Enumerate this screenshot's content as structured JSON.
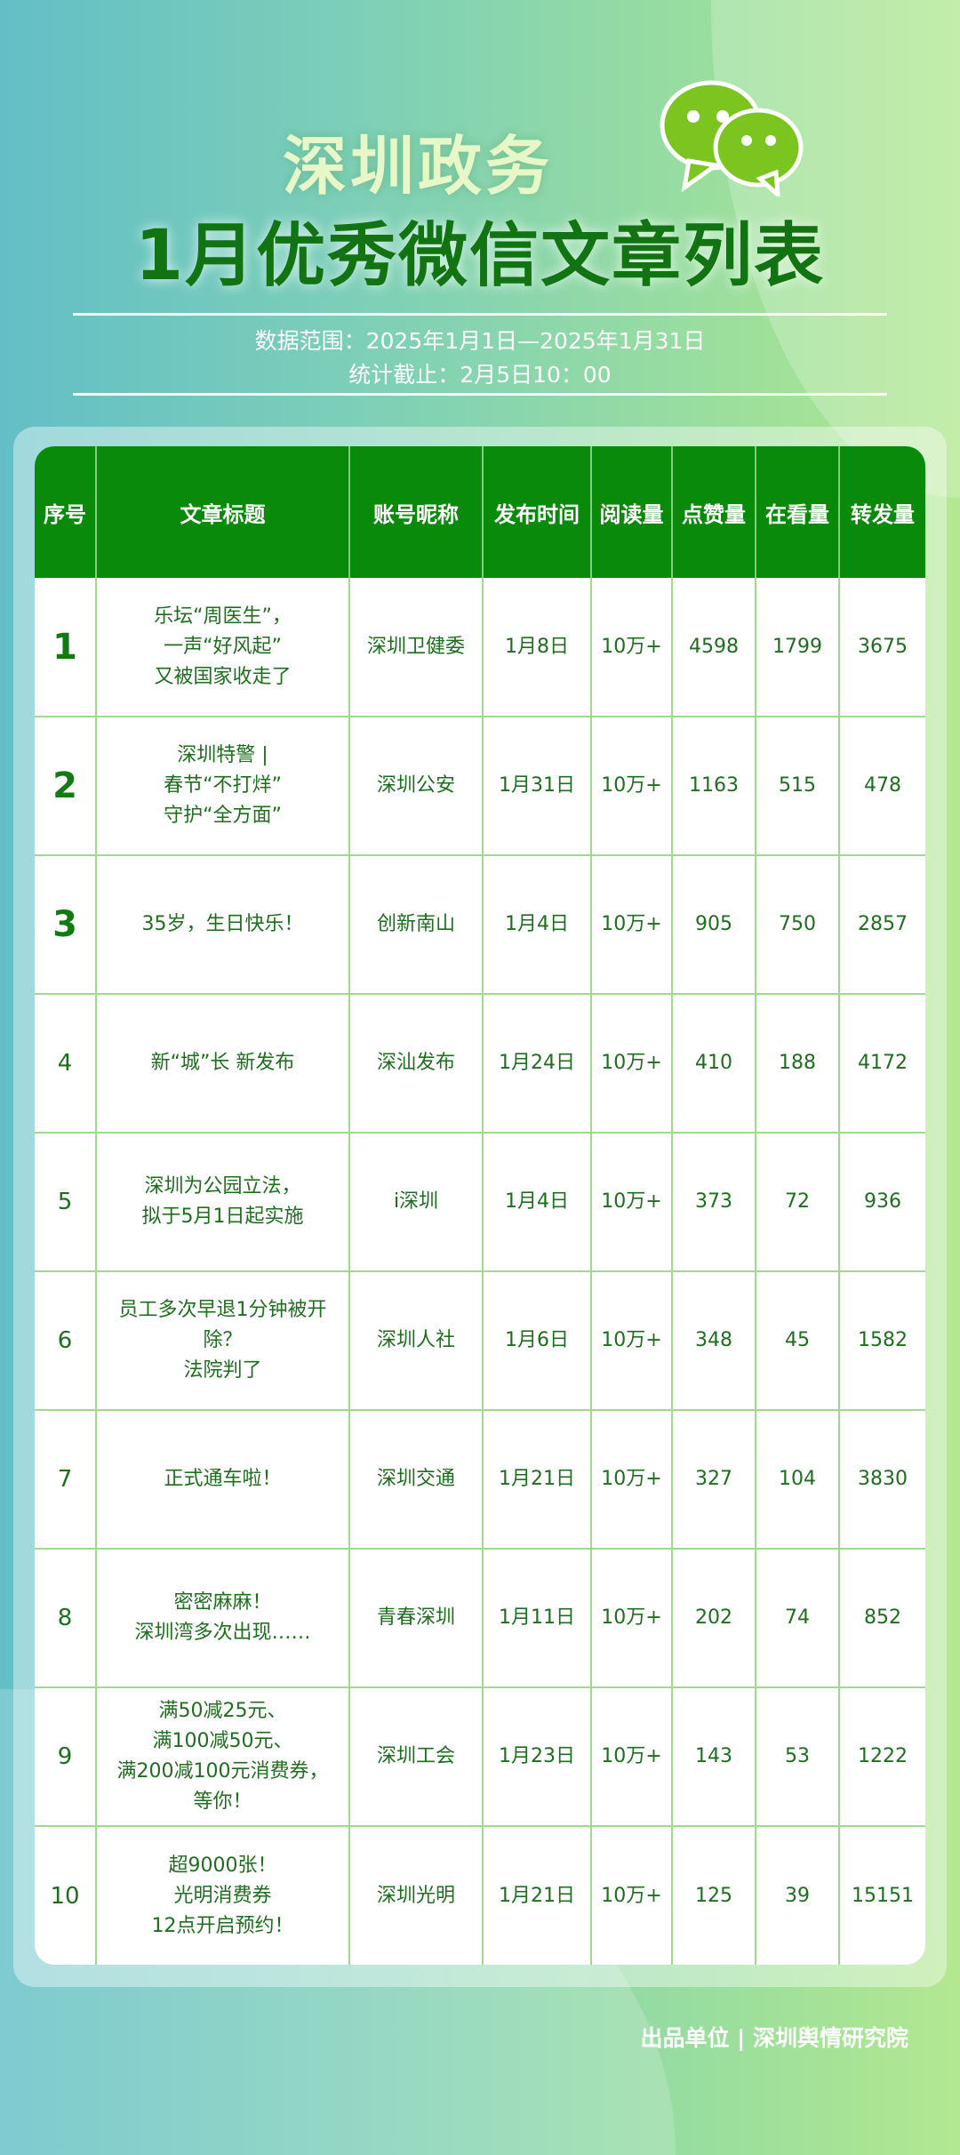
{
  "header": {
    "title_line1": "深圳政务",
    "title_line2": "1月优秀微信文章列表",
    "data_range": "数据范围：2025年1月1日—2025年1月31日",
    "cutoff": "统计截止：2月5日10：00",
    "logo_icon": "wechat-icon",
    "logo_color": "#7cc520"
  },
  "table": {
    "columns": [
      "序号",
      "文章标题",
      "账号昵称",
      "发布时间",
      "阅读量",
      "点赞量",
      "在看量",
      "转发量"
    ],
    "rows": [
      {
        "rank": "1",
        "title": "乐坛“周医生”，\n一声“好风起”\n又被国家收走了",
        "account": "深圳卫健委",
        "date": "1月8日",
        "reads": "10万+",
        "likes": "4598",
        "watching": "1799",
        "shares": "3675"
      },
      {
        "rank": "2",
        "title": "深圳特警 |\n春节“不打烊”\n守护“全方面”",
        "account": "深圳公安",
        "date": "1月31日",
        "reads": "10万+",
        "likes": "1163",
        "watching": "515",
        "shares": "478"
      },
      {
        "rank": "3",
        "title": "35岁，生日快乐！",
        "account": "创新南山",
        "date": "1月4日",
        "reads": "10万+",
        "likes": "905",
        "watching": "750",
        "shares": "2857"
      },
      {
        "rank": "4",
        "title": "新“城”长 新发布",
        "account": "深汕发布",
        "date": "1月24日",
        "reads": "10万+",
        "likes": "410",
        "watching": "188",
        "shares": "4172"
      },
      {
        "rank": "5",
        "title": "深圳为公园立法，\n拟于5月1日起实施",
        "account": "i深圳",
        "date": "1月4日",
        "reads": "10万+",
        "likes": "373",
        "watching": "72",
        "shares": "936"
      },
      {
        "rank": "6",
        "title": "员工多次早退1分钟被开除？\n法院判了",
        "account": "深圳人社",
        "date": "1月6日",
        "reads": "10万+",
        "likes": "348",
        "watching": "45",
        "shares": "1582"
      },
      {
        "rank": "7",
        "title": "正式通车啦！",
        "account": "深圳交通",
        "date": "1月21日",
        "reads": "10万+",
        "likes": "327",
        "watching": "104",
        "shares": "3830"
      },
      {
        "rank": "8",
        "title": "密密麻麻！\n深圳湾多次出现……",
        "account": "青春深圳",
        "date": "1月11日",
        "reads": "10万+",
        "likes": "202",
        "watching": "74",
        "shares": "852"
      },
      {
        "rank": "9",
        "title": "满50减25元、\n满100减50元、\n满200减100元消费券，\n等你！",
        "account": "深圳工会",
        "date": "1月23日",
        "reads": "10万+",
        "likes": "143",
        "watching": "53",
        "shares": "1222"
      },
      {
        "rank": "10",
        "title": "超9000张！\n光明消费券\n12点开启预约！",
        "account": "深圳光明",
        "date": "1月21日",
        "reads": "10万+",
        "likes": "125",
        "watching": "39",
        "shares": "15151"
      }
    ]
  },
  "footer": {
    "credit": "出品单位 | 深圳舆情研究院"
  }
}
